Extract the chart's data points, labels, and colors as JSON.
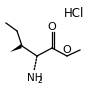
{
  "bg_color": "#ffffff",
  "line_color": "#000000",
  "font_color": "#000000",
  "hcl_text": "HCl",
  "o_text": "O",
  "nh2_text": "NH",
  "nh2_sub": "2",
  "hcl_fontsize": 8.5,
  "label_fontsize": 7.5,
  "lw": 0.9
}
